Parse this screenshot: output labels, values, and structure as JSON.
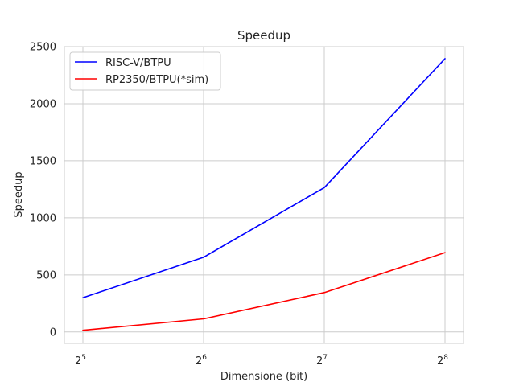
{
  "chart_data": {
    "type": "line",
    "title": "Speedup",
    "xlabel": "Dimensione (bit)",
    "ylabel": "Speedup",
    "x": [
      32,
      64,
      128,
      256
    ],
    "x_ticks": [
      {
        "base": "2",
        "exp": "5"
      },
      {
        "base": "2",
        "exp": "6"
      },
      {
        "base": "2",
        "exp": "7"
      },
      {
        "base": "2",
        "exp": "8"
      }
    ],
    "x_scale": "log2",
    "y_ticks": [
      "0",
      "500",
      "1000",
      "1500",
      "2000",
      "2500"
    ],
    "ylim": [
      -100,
      2500
    ],
    "grid": true,
    "legend_position": "top-left",
    "series": [
      {
        "name": "RISC-V/BTPU",
        "color": "#0000ff",
        "values": [
          300,
          655,
          1265,
          2395
        ]
      },
      {
        "name": "RP2350/BTPU(*sim)",
        "color": "#ff0000",
        "values": [
          15,
          115,
          345,
          695
        ]
      }
    ]
  }
}
